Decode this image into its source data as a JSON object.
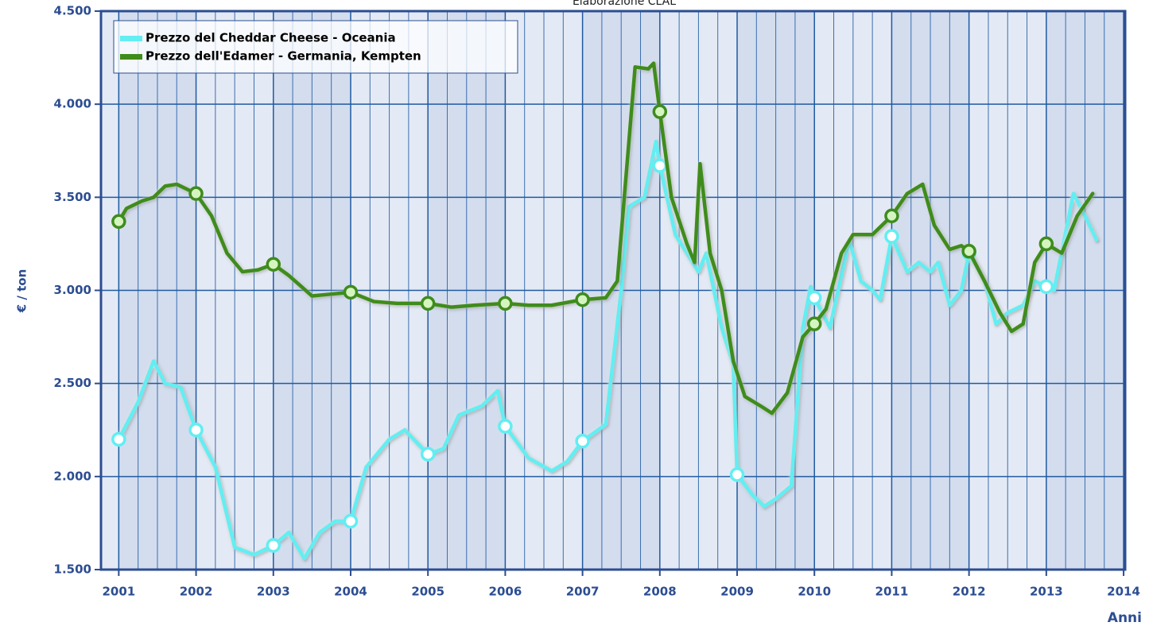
{
  "chart_data": {
    "type": "line",
    "subtitle": "Elaborazione CLAL",
    "y_label": "€ / ton",
    "x_label": "Anni",
    "xlim": [
      2000.77,
      2014.02
    ],
    "xticks": [
      2001,
      2002,
      2003,
      2004,
      2005,
      2006,
      2007,
      2008,
      2009,
      2010,
      2011,
      2012,
      2013,
      2014
    ],
    "ylim": [
      1500,
      4500
    ],
    "yticks": [
      {
        "value": 1500,
        "label": "1.500"
      },
      {
        "value": 2000,
        "label": "2.000"
      },
      {
        "value": 2500,
        "label": "2.500"
      },
      {
        "value": 3000,
        "label": "3.000"
      },
      {
        "value": 3500,
        "label": "3.500"
      },
      {
        "value": 4000,
        "label": "4.000"
      },
      {
        "value": 4500,
        "label": "4.500"
      }
    ],
    "grid": true,
    "legend": "top-left",
    "series": [
      {
        "name": "Prezzo del Cheddar Cheese - Oceania",
        "color": "#62eef2",
        "marker_color": "#ffffff",
        "x": [
          2001.0,
          2001.25,
          2001.45,
          2001.6,
          2001.8,
          2002.0,
          2002.25,
          2002.5,
          2002.75,
          2003.0,
          2003.2,
          2003.4,
          2003.6,
          2003.8,
          2004.0,
          2004.2,
          2004.5,
          2004.7,
          2005.0,
          2005.2,
          2005.4,
          2005.7,
          2005.9,
          2006.0,
          2006.3,
          2006.6,
          2006.8,
          2007.0,
          2007.3,
          2007.5,
          2007.6,
          2007.8,
          2007.95,
          2008.0,
          2008.2,
          2008.35,
          2008.5,
          2008.6,
          2008.8,
          2008.95,
          2009.0,
          2009.2,
          2009.35,
          2009.5,
          2009.7,
          2009.85,
          2009.95,
          2010.0,
          2010.2,
          2010.45,
          2010.6,
          2010.75,
          2010.85,
          2011.0,
          2011.2,
          2011.35,
          2011.5,
          2011.6,
          2011.75,
          2011.9,
          2012.0,
          2012.2,
          2012.35,
          2012.5,
          2012.7,
          2012.85,
          2013.0,
          2013.1,
          2013.35,
          2013.5,
          2013.65
        ],
        "values": [
          2200,
          2400,
          2620,
          2500,
          2480,
          2250,
          2050,
          1620,
          1580,
          1630,
          1700,
          1560,
          1700,
          1760,
          1760,
          2050,
          2200,
          2250,
          2120,
          2150,
          2330,
          2380,
          2460,
          2270,
          2100,
          2030,
          2080,
          2190,
          2280,
          3000,
          3450,
          3500,
          3800,
          3670,
          3300,
          3200,
          3100,
          3200,
          2800,
          2600,
          2010,
          1900,
          1840,
          1880,
          1950,
          2800,
          3020,
          2960,
          2800,
          3270,
          3050,
          3000,
          2950,
          3290,
          3100,
          3150,
          3100,
          3150,
          2920,
          3000,
          3200,
          3050,
          2820,
          2880,
          2920,
          3050,
          3020,
          3000,
          3520,
          3400,
          3270
        ]
      },
      {
        "name": "Prezzo dell'Edamer - Germania, Kempten",
        "color": "#3f8c1c",
        "marker_color": "#d4f5c0",
        "x": [
          2001.0,
          2001.1,
          2001.3,
          2001.45,
          2001.6,
          2001.75,
          2002.0,
          2002.2,
          2002.4,
          2002.6,
          2002.8,
          2003.0,
          2003.2,
          2003.5,
          2003.75,
          2004.0,
          2004.3,
          2004.6,
          2005.0,
          2005.3,
          2005.6,
          2006.0,
          2006.3,
          2006.6,
          2007.0,
          2007.3,
          2007.45,
          2007.6,
          2007.68,
          2007.85,
          2007.92,
          2008.0,
          2008.15,
          2008.35,
          2008.45,
          2008.52,
          2008.65,
          2008.8,
          2008.95,
          2009.1,
          2009.3,
          2009.45,
          2009.65,
          2009.85,
          2010.0,
          2010.15,
          2010.35,
          2010.5,
          2010.75,
          2011.0,
          2011.2,
          2011.4,
          2011.55,
          2011.75,
          2011.9,
          2012.0,
          2012.2,
          2012.4,
          2012.55,
          2012.7,
          2012.85,
          2013.0,
          2013.2,
          2013.4,
          2013.6
        ],
        "values": [
          3370,
          3440,
          3480,
          3500,
          3560,
          3570,
          3520,
          3400,
          3200,
          3100,
          3110,
          3140,
          3080,
          2970,
          2980,
          2990,
          2940,
          2930,
          2930,
          2910,
          2920,
          2930,
          2920,
          2920,
          2950,
          2960,
          3050,
          3800,
          4200,
          4190,
          4220,
          3960,
          3500,
          3250,
          3150,
          3680,
          3200,
          3000,
          2620,
          2430,
          2380,
          2340,
          2450,
          2750,
          2820,
          2900,
          3200,
          3300,
          3300,
          3400,
          3520,
          3570,
          3350,
          3220,
          3240,
          3210,
          3050,
          2880,
          2780,
          2820,
          3150,
          3250,
          3200,
          3400,
          3520
        ]
      }
    ]
  }
}
